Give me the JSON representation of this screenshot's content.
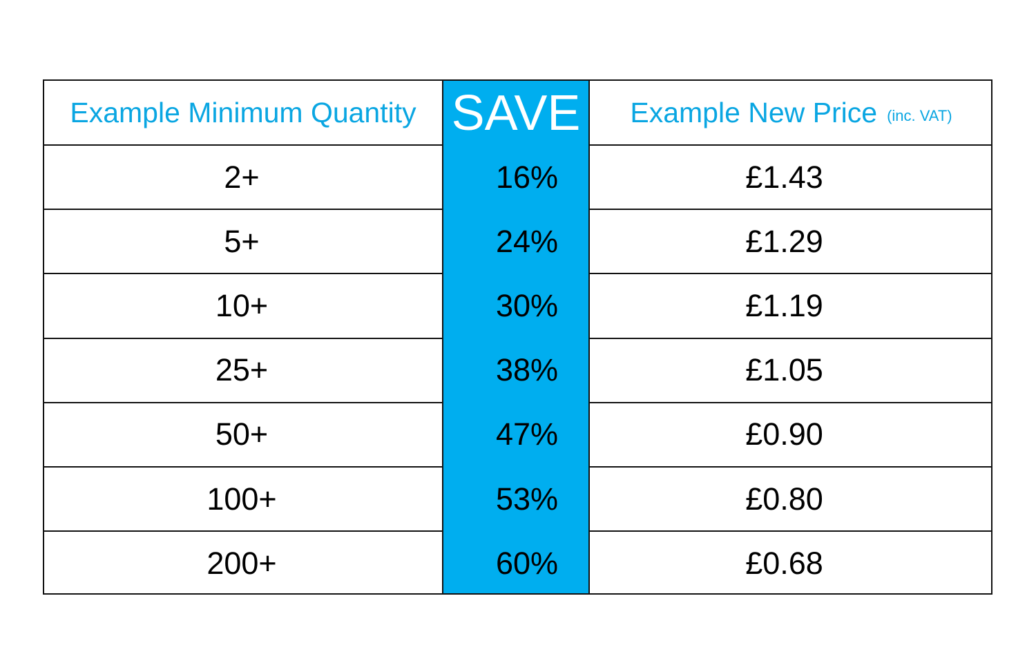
{
  "header": {
    "quantity": "Example Minimum Quantity",
    "save": "SAVE",
    "price": "Example New Price",
    "price_note": "(inc. VAT)"
  },
  "rows": [
    {
      "quantity": "2+",
      "save": "16%",
      "price": "£1.43"
    },
    {
      "quantity": "5+",
      "save": "24%",
      "price": "£1.29"
    },
    {
      "quantity": "10+",
      "save": "30%",
      "price": "£1.19"
    },
    {
      "quantity": "25+",
      "save": "38%",
      "price": "£1.05"
    },
    {
      "quantity": "50+",
      "save": "47%",
      "price": "£0.90"
    },
    {
      "quantity": "100+",
      "save": "53%",
      "price": "£0.80"
    },
    {
      "quantity": "200+",
      "save": "60%",
      "price": "£0.68"
    }
  ],
  "colors": {
    "accent": "#00AEEF",
    "header_text": "#0AA6E2"
  }
}
